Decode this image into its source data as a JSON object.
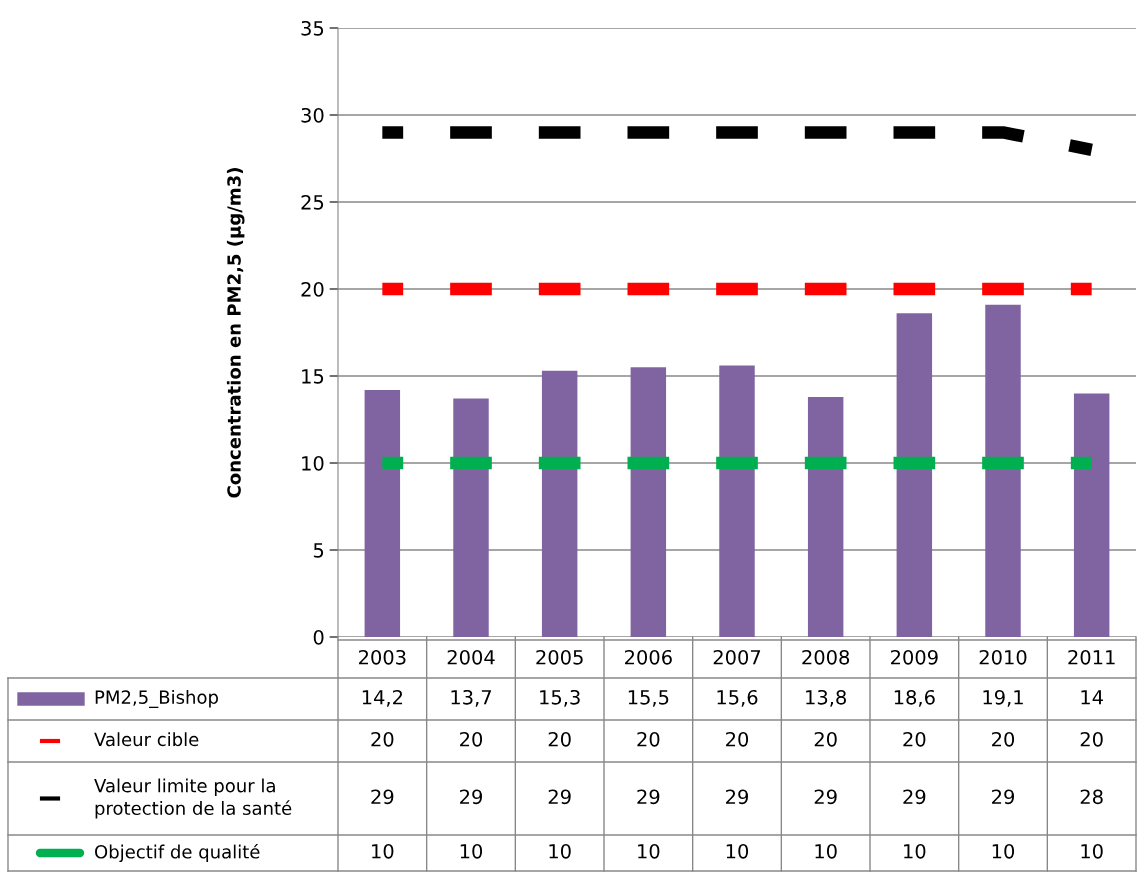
{
  "chart_data": {
    "type": "bar",
    "ylabel": "Concentration en PM2,5 (µg/m3)",
    "categories": [
      "2003",
      "2004",
      "2005",
      "2006",
      "2007",
      "2008",
      "2009",
      "2010",
      "2011"
    ],
    "series": [
      {
        "name": "PM2,5_Bishop",
        "color": "#8064a2",
        "values": [
          14.2,
          13.7,
          15.3,
          15.5,
          15.6,
          13.8,
          18.6,
          19.1,
          14
        ],
        "value_labels": [
          "14,2",
          "13,7",
          "15,3",
          "15,5",
          "15,6",
          "13,8",
          "18,6",
          "19,1",
          "14"
        ]
      },
      {
        "name": "Valeur cible",
        "type": "line",
        "line_style": "dashed",
        "color": "#ff0000",
        "values": [
          20,
          20,
          20,
          20,
          20,
          20,
          20,
          20,
          20
        ],
        "value_labels": [
          "20",
          "20",
          "20",
          "20",
          "20",
          "20",
          "20",
          "20",
          "20"
        ]
      },
      {
        "name": "Valeur limite pour la protection de la santé",
        "type": "line",
        "line_style": "dashed",
        "color": "#000000",
        "values": [
          29,
          29,
          29,
          29,
          29,
          29,
          29,
          29,
          28
        ],
        "value_labels": [
          "29",
          "29",
          "29",
          "29",
          "29",
          "29",
          "29",
          "29",
          "28"
        ]
      },
      {
        "name": "Objectif de qualité",
        "type": "line",
        "line_style": "dashed",
        "color": "#00b050",
        "values": [
          10,
          10,
          10,
          10,
          10,
          10,
          10,
          10,
          10
        ],
        "value_labels": [
          "10",
          "10",
          "10",
          "10",
          "10",
          "10",
          "10",
          "10",
          "10"
        ]
      }
    ],
    "ylim": [
      0,
      35
    ],
    "yticks": [
      0,
      5,
      10,
      15,
      20,
      25,
      30,
      35
    ],
    "grid": "y",
    "legend": "bottom",
    "tick_labels": "y"
  }
}
